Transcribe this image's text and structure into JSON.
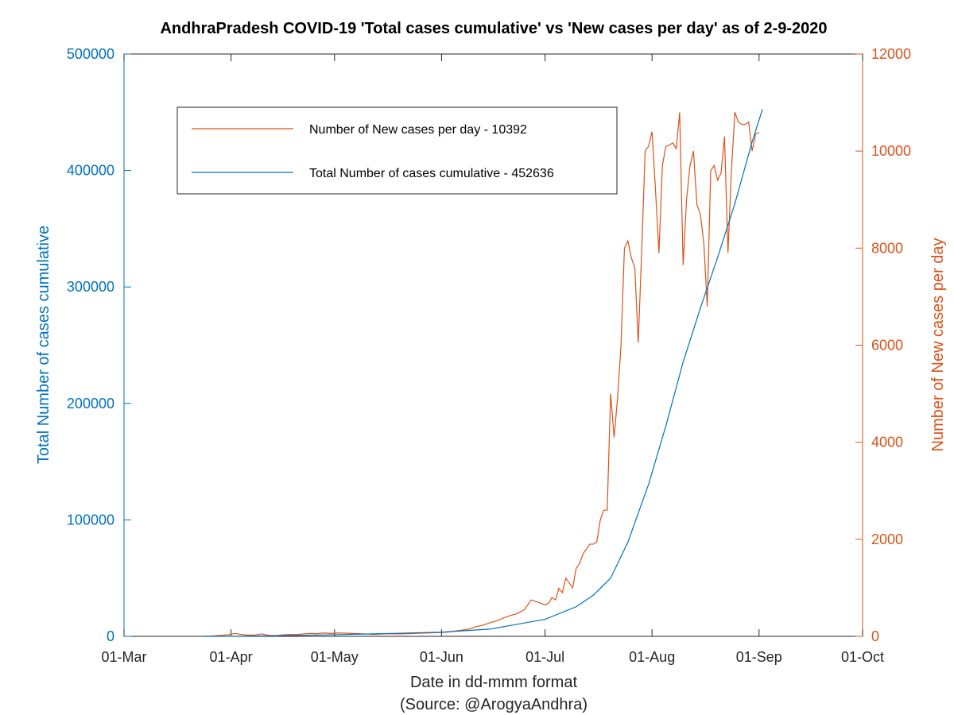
{
  "chart_data": {
    "type": "line",
    "title": "AndhraPradesh COVID-19 'Total cases cumulative' vs 'New cases per day' as of 2-9-2020",
    "xlabel": "Date in dd-mmm format",
    "xlabel_source": "(Source: @ArogyaAndhra)",
    "ylabel_left": "Total Number of cases cumulative",
    "ylabel_right": "Number of New cases per day",
    "x_ticks": [
      "01-Mar",
      "01-Apr",
      "01-May",
      "01-Jun",
      "01-Jul",
      "01-Aug",
      "01-Sep",
      "01-Oct"
    ],
    "y_left_ticks": [
      "0",
      "100000",
      "200000",
      "300000",
      "400000",
      "500000"
    ],
    "y_right_ticks": [
      "0",
      "2000",
      "4000",
      "6000",
      "8000",
      "10000",
      "12000"
    ],
    "xlim": [
      "2020-03-01",
      "2020-10-01"
    ],
    "ylim_left": [
      0,
      500000
    ],
    "ylim_right": [
      0,
      12000
    ],
    "grid": false,
    "legend_position": "top-left",
    "colors": {
      "left_axis": "#0072bd",
      "right_axis": "#d95319"
    },
    "series": [
      {
        "name": "Number of New cases per day - 10392",
        "axis": "right",
        "color": "#d95319",
        "points": [
          [
            "2020-03-24",
            5
          ],
          [
            "2020-03-26",
            5
          ],
          [
            "2020-03-29",
            20
          ],
          [
            "2020-03-31",
            30
          ],
          [
            "2020-04-02",
            60
          ],
          [
            "2020-04-04",
            40
          ],
          [
            "2020-04-06",
            25
          ],
          [
            "2020-04-08",
            30
          ],
          [
            "2020-04-10",
            50
          ],
          [
            "2020-04-12",
            20
          ],
          [
            "2020-04-14",
            15
          ],
          [
            "2020-04-16",
            30
          ],
          [
            "2020-04-18",
            40
          ],
          [
            "2020-04-20",
            35
          ],
          [
            "2020-04-22",
            50
          ],
          [
            "2020-04-24",
            60
          ],
          [
            "2020-04-26",
            55
          ],
          [
            "2020-04-28",
            70
          ],
          [
            "2020-04-30",
            60
          ],
          [
            "2020-05-02",
            70
          ],
          [
            "2020-05-04",
            65
          ],
          [
            "2020-05-06",
            60
          ],
          [
            "2020-05-08",
            55
          ],
          [
            "2020-05-10",
            50
          ],
          [
            "2020-05-12",
            40
          ],
          [
            "2020-05-14",
            45
          ],
          [
            "2020-05-16",
            55
          ],
          [
            "2020-05-18",
            50
          ],
          [
            "2020-05-20",
            50
          ],
          [
            "2020-05-22",
            55
          ],
          [
            "2020-05-24",
            60
          ],
          [
            "2020-05-26",
            65
          ],
          [
            "2020-05-28",
            70
          ],
          [
            "2020-05-30",
            75
          ],
          [
            "2020-06-01",
            80
          ],
          [
            "2020-06-03",
            90
          ],
          [
            "2020-06-05",
            110
          ],
          [
            "2020-06-07",
            130
          ],
          [
            "2020-06-09",
            150
          ],
          [
            "2020-06-11",
            200
          ],
          [
            "2020-06-13",
            230
          ],
          [
            "2020-06-15",
            280
          ],
          [
            "2020-06-17",
            320
          ],
          [
            "2020-06-19",
            380
          ],
          [
            "2020-06-21",
            430
          ],
          [
            "2020-06-23",
            470
          ],
          [
            "2020-06-25",
            550
          ],
          [
            "2020-06-27",
            750
          ],
          [
            "2020-06-29",
            700
          ],
          [
            "2020-07-01",
            650
          ],
          [
            "2020-07-02",
            680
          ],
          [
            "2020-07-03",
            800
          ],
          [
            "2020-07-04",
            750
          ],
          [
            "2020-07-05",
            990
          ],
          [
            "2020-07-06",
            900
          ],
          [
            "2020-07-07",
            1200
          ],
          [
            "2020-07-08",
            1100
          ],
          [
            "2020-07-09",
            1000
          ],
          [
            "2020-07-10",
            1400
          ],
          [
            "2020-07-11",
            1500
          ],
          [
            "2020-07-12",
            1700
          ],
          [
            "2020-07-13",
            1800
          ],
          [
            "2020-07-14",
            1900
          ],
          [
            "2020-07-15",
            1900
          ],
          [
            "2020-07-16",
            1950
          ],
          [
            "2020-07-17",
            2400
          ],
          [
            "2020-07-18",
            2600
          ],
          [
            "2020-07-19",
            2600
          ],
          [
            "2020-07-20",
            5000
          ],
          [
            "2020-07-21",
            4100
          ],
          [
            "2020-07-22",
            4900
          ],
          [
            "2020-07-23",
            6000
          ],
          [
            "2020-07-24",
            8000
          ],
          [
            "2020-07-25",
            8150
          ],
          [
            "2020-07-26",
            7800
          ],
          [
            "2020-07-27",
            7600
          ],
          [
            "2020-07-28",
            6050
          ],
          [
            "2020-07-29",
            7950
          ],
          [
            "2020-07-30",
            10000
          ],
          [
            "2020-07-31",
            10100
          ],
          [
            "2020-08-01",
            10400
          ],
          [
            "2020-08-02",
            9200
          ],
          [
            "2020-08-03",
            7900
          ],
          [
            "2020-08-04",
            9700
          ],
          [
            "2020-08-05",
            10100
          ],
          [
            "2020-08-06",
            10120
          ],
          [
            "2020-08-07",
            10170
          ],
          [
            "2020-08-08",
            10050
          ],
          [
            "2020-08-09",
            10800
          ],
          [
            "2020-08-10",
            7650
          ],
          [
            "2020-08-11",
            9000
          ],
          [
            "2020-08-12",
            9700
          ],
          [
            "2020-08-13",
            10000
          ],
          [
            "2020-08-14",
            8900
          ],
          [
            "2020-08-15",
            8700
          ],
          [
            "2020-08-16",
            8100
          ],
          [
            "2020-08-17",
            6800
          ],
          [
            "2020-08-18",
            9600
          ],
          [
            "2020-08-19",
            9700
          ],
          [
            "2020-08-20",
            9400
          ],
          [
            "2020-08-21",
            9550
          ],
          [
            "2020-08-22",
            10300
          ],
          [
            "2020-08-23",
            7900
          ],
          [
            "2020-08-24",
            9600
          ],
          [
            "2020-08-25",
            10800
          ],
          [
            "2020-08-26",
            10600
          ],
          [
            "2020-08-27",
            10550
          ],
          [
            "2020-08-28",
            10550
          ],
          [
            "2020-08-29",
            10600
          ],
          [
            "2020-08-30",
            10000
          ],
          [
            "2020-08-31",
            10350
          ],
          [
            "2020-09-01",
            10392
          ]
        ]
      },
      {
        "name": "Total Number of cases cumulative - 452636",
        "axis": "left",
        "color": "#0072bd",
        "points": [
          [
            "2020-03-24",
            10
          ],
          [
            "2020-04-01",
            100
          ],
          [
            "2020-04-15",
            500
          ],
          [
            "2020-05-01",
            1400
          ],
          [
            "2020-05-15",
            2300
          ],
          [
            "2020-06-01",
            3600
          ],
          [
            "2020-06-15",
            6200
          ],
          [
            "2020-07-01",
            14600
          ],
          [
            "2020-07-10",
            25400
          ],
          [
            "2020-07-15",
            35400
          ],
          [
            "2020-07-20",
            50000
          ],
          [
            "2020-07-25",
            80900
          ],
          [
            "2020-07-31",
            130600
          ],
          [
            "2020-08-05",
            180700
          ],
          [
            "2020-08-10",
            235500
          ],
          [
            "2020-08-15",
            281800
          ],
          [
            "2020-08-20",
            325400
          ],
          [
            "2020-08-25",
            371600
          ],
          [
            "2020-08-30",
            424600
          ],
          [
            "2020-09-02",
            452636
          ]
        ]
      }
    ]
  }
}
